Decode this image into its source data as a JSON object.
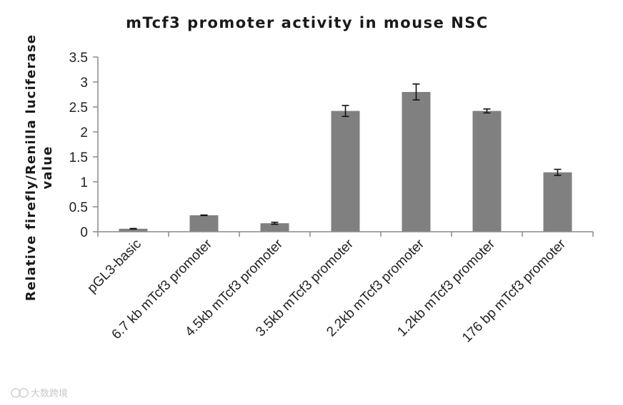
{
  "watermark": "大数跨境",
  "chart_data": {
    "type": "bar",
    "title": "mTcf3 promoter activity  in mouse NSC",
    "ylabel_lines": [
      "Relative  firefly/Renilla  luciferase",
      "value"
    ],
    "xlabel": "",
    "categories": [
      "pGL3-basic",
      "6.7 kb mTcf3 promoter",
      "4.5kb mTcf3 promoter",
      "3.5kb mTcf3 promoter",
      "2.2kb mTcf3 promoter",
      "1.2kb mTcf3 promoter",
      "176 bp mTcf3 promoter"
    ],
    "values": [
      0.06,
      0.33,
      0.17,
      2.42,
      2.8,
      2.42,
      1.19
    ],
    "errors": [
      0.005,
      0.005,
      0.02,
      0.11,
      0.16,
      0.04,
      0.06
    ],
    "ylim": [
      0,
      3.5
    ],
    "yticks": [
      "0",
      "0.5",
      "1",
      "1.5",
      "2",
      "2.5",
      "3",
      "3.5"
    ],
    "bar_color": "#808080",
    "grid": false,
    "legend": "none"
  }
}
